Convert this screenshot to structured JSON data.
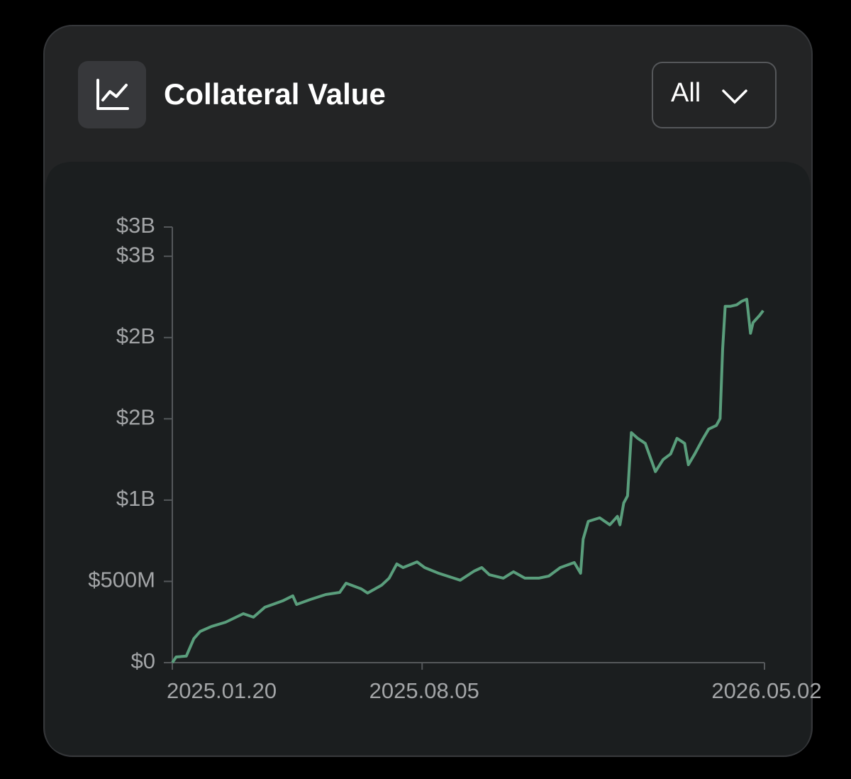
{
  "header": {
    "title": "Collateral Value",
    "range_selector": "All"
  },
  "chart_data": {
    "type": "line",
    "x": [
      "2025-01-20",
      "2025-01-23",
      "2025-01-31",
      "2025-02-06",
      "2025-02-11",
      "2025-02-20",
      "2025-03-03",
      "2025-03-17",
      "2025-03-25",
      "2025-04-03",
      "2025-04-17",
      "2025-04-25",
      "2025-04-28",
      "2025-05-09",
      "2025-05-21",
      "2025-06-01",
      "2025-06-06",
      "2025-06-18",
      "2025-06-23",
      "2025-07-04",
      "2025-07-10",
      "2025-07-16",
      "2025-07-21",
      "2025-08-01",
      "2025-08-07",
      "2025-08-18",
      "2025-08-30",
      "2025-09-04",
      "2025-09-15",
      "2025-09-21",
      "2025-09-27",
      "2025-10-08",
      "2025-10-16",
      "2025-10-25",
      "2025-11-05",
      "2025-11-13",
      "2025-11-22",
      "2025-12-03",
      "2025-12-08",
      "2025-12-10",
      "2025-12-14",
      "2025-12-23",
      "2025-12-31",
      "2026-01-06",
      "2026-01-08",
      "2026-01-11",
      "2026-01-14",
      "2026-01-17",
      "2026-01-22",
      "2026-01-28",
      "2026-02-03",
      "2026-02-05",
      "2026-02-11",
      "2026-02-17",
      "2026-02-22",
      "2026-02-28",
      "2026-03-03",
      "2026-03-08",
      "2026-03-14",
      "2026-03-19",
      "2026-03-25",
      "2026-03-28",
      "2026-03-30",
      "2026-04-01",
      "2026-04-05",
      "2026-04-10",
      "2026-04-14",
      "2026-04-18",
      "2026-04-21",
      "2026-04-23",
      "2026-04-28",
      "2026-05-01"
    ],
    "series": [
      {
        "color": "#5a9e7c",
        "values": [
          0,
          35000000,
          40000000,
          148000000,
          192000000,
          223000000,
          249000000,
          301000000,
          280000000,
          341000000,
          380000000,
          411000000,
          358000000,
          389000000,
          419000000,
          432000000,
          489000000,
          454000000,
          428000000,
          476000000,
          520000000,
          607000000,
          585000000,
          620000000,
          585000000,
          550000000,
          520000000,
          507000000,
          563000000,
          585000000,
          541000000,
          520000000,
          559000000,
          520000000,
          520000000,
          533000000,
          585000000,
          616000000,
          550000000,
          760000000,
          869000000,
          891000000,
          848000000,
          900000000,
          848000000,
          982000000,
          1026000000,
          1415000000,
          1380000000,
          1349000000,
          1218000000,
          1175000000,
          1249000000,
          1284000000,
          1380000000,
          1349000000,
          1218000000,
          1284000000,
          1371000000,
          1437000000,
          1459000000,
          1502000000,
          1930000000,
          2192000000,
          2192000000,
          2201000000,
          2223000000,
          2236000000,
          2026000000,
          2092000000,
          2135000000,
          2166000000
        ]
      }
    ],
    "xlim": [
      "2025-01-20",
      "2026-05-02"
    ],
    "xticks": [
      {
        "value": "2025-01-20",
        "label": "2025.01.20"
      },
      {
        "value": "2025-08-05",
        "label": "2025.08.05"
      },
      {
        "value": "2026-05-02",
        "label": "2026.05.02"
      }
    ],
    "ylim": [
      0,
      2680000000
    ],
    "yticks": [
      {
        "value": 0,
        "label": "$0"
      },
      {
        "value": 500000000,
        "label": "$500M"
      },
      {
        "value": 1000000000,
        "label": "$1B"
      },
      {
        "value": 1500000000,
        "label": "$2B"
      },
      {
        "value": 2000000000,
        "label": "$2B"
      },
      {
        "value": 2500000000,
        "label": "$3B"
      },
      {
        "value": 2680000000,
        "label": "$3B"
      }
    ]
  }
}
